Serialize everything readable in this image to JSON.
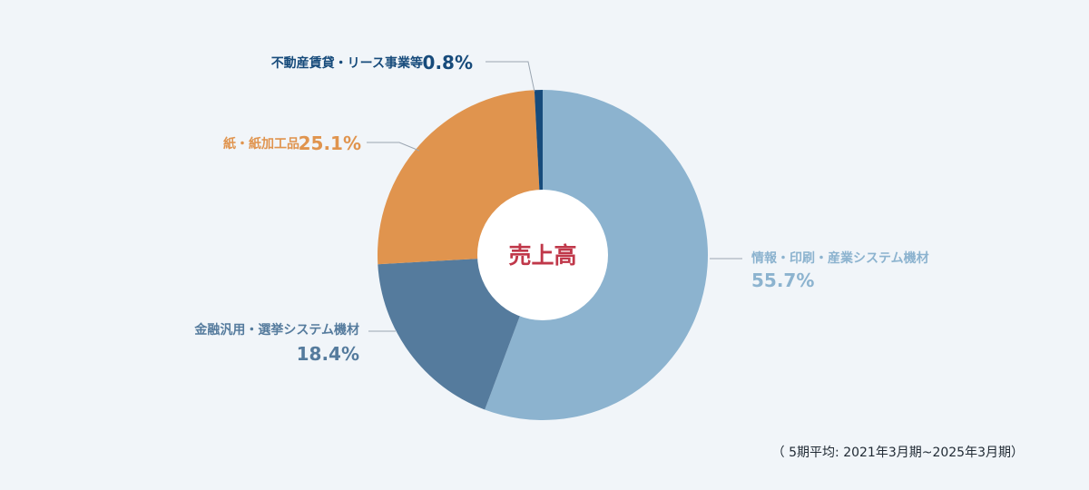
{
  "chart_data": {
    "type": "pie",
    "center_label": "売上高",
    "slices": [
      {
        "label": "情報・印刷・産業システム機材",
        "value": 55.7,
        "value_label": "55.7%",
        "color": "#8cb3cf"
      },
      {
        "label": "金融汎用・選挙システム機材",
        "value": 18.4,
        "value_label": "18.4%",
        "color": "#557b9d"
      },
      {
        "label": "紙・紙加工品",
        "value": 25.1,
        "value_label": "25.1%",
        "color": "#e0944e"
      },
      {
        "label": "不動産賃貸・リース事業等",
        "value": 0.8,
        "value_label": "0.8%",
        "color": "#174b7b"
      }
    ]
  },
  "footnote": "（ 5期平均: 2021年3月期~2025年3月期）",
  "colors": {
    "background": "#f1f5f9",
    "center_text": "#c0384a",
    "leader_line": "#9aa5b1"
  }
}
